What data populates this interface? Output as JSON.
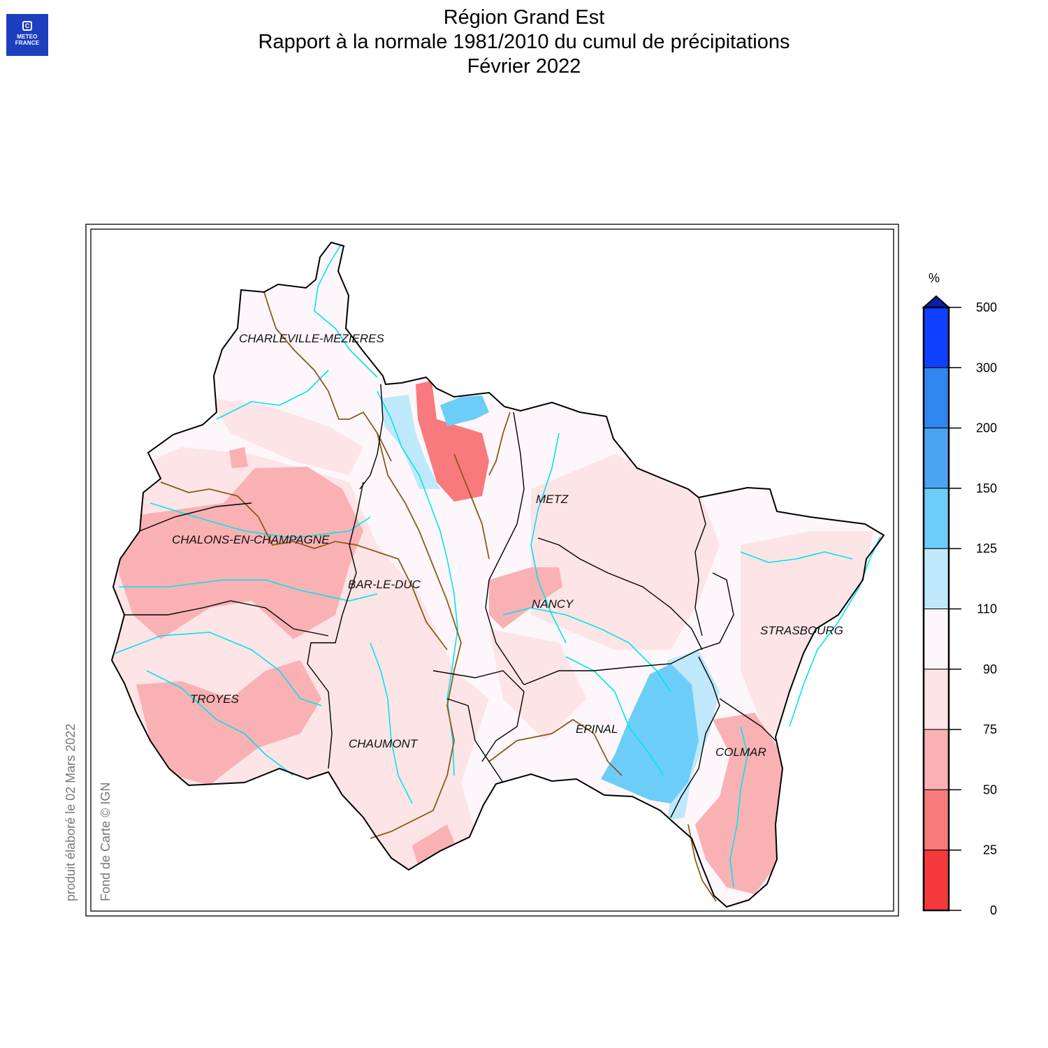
{
  "logo": {
    "line1": "METEO",
    "line2": "FRANCE",
    "mark": "C"
  },
  "title": {
    "line1": "Région Grand Est",
    "line2": "Rapport à la normale 1981/2010 du cumul de précipitations",
    "line3": "Février 2022"
  },
  "credits": {
    "produced": "produit élaboré le 02 Mars 2022",
    "basemap": "Fond de Carte © IGN"
  },
  "cities": [
    "CHARLEVILLE-MEZIERES",
    "CHALONS-EN-CHAMPAGNE",
    "BAR-LE-DUC",
    "METZ",
    "NANCY",
    "STRASBOURG",
    "TROYES",
    "CHAUMONT",
    "EPINAL",
    "COLMAR"
  ],
  "legend": {
    "unit": "%",
    "ticks": [
      "500",
      "300",
      "200",
      "150",
      "125",
      "110",
      "90",
      "75",
      "50",
      "25",
      "0"
    ],
    "bins": [
      {
        "range": "300-500",
        "color": "#1040ff"
      },
      {
        "range": "200-300",
        "color": "#2f86ee"
      },
      {
        "range": "150-200",
        "color": "#4aa4f2"
      },
      {
        "range": "125-150",
        "color": "#6ccdf8"
      },
      {
        "range": "110-125",
        "color": "#bfe9fb"
      },
      {
        "range": "90-110",
        "color": "#fdf7fb"
      },
      {
        "range": "75-90",
        "color": "#fde4e6"
      },
      {
        "range": "50-75",
        "color": "#f9b1b4"
      },
      {
        "range": "25-50",
        "color": "#f87a7c"
      },
      {
        "range": "0-25",
        "color": "#f43a3c"
      }
    ]
  },
  "colors": {
    "rivers": "#00e5ee",
    "departments": "#8b5a1a",
    "borders": "#000000"
  }
}
